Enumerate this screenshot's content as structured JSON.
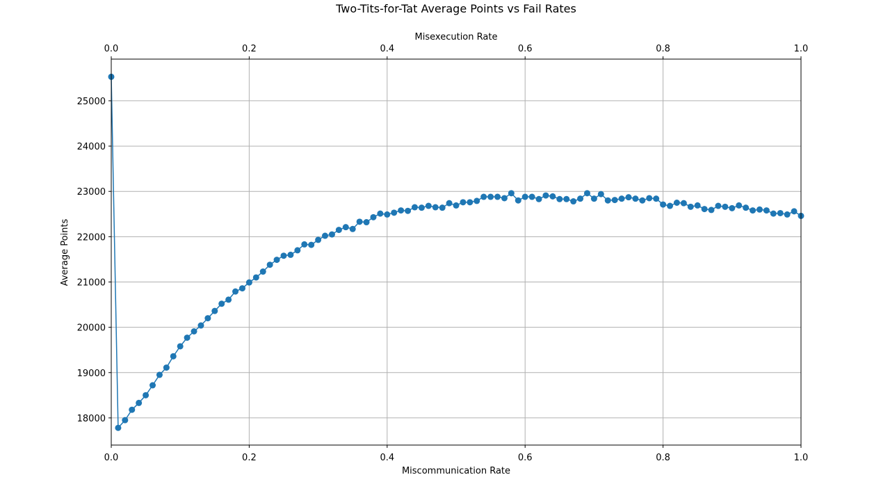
{
  "chart_data": {
    "type": "line",
    "title": "Two-Tits-for-Tat Average Points vs Fail Rates",
    "xlabel": "Miscommunication Rate",
    "x2label": "Misexecution Rate",
    "ylabel": "Average Points",
    "xlim": [
      0,
      1
    ],
    "ylim": [
      17400,
      25920
    ],
    "grid": true,
    "xticks": [
      0.0,
      0.2,
      0.4,
      0.6,
      0.8,
      1.0
    ],
    "xtick_labels": [
      "0.0",
      "0.2",
      "0.4",
      "0.6",
      "0.8",
      "1.0"
    ],
    "x2ticks": [
      0.0,
      0.2,
      0.4,
      0.6,
      0.8,
      1.0
    ],
    "x2tick_labels": [
      "0.0",
      "0.2",
      "0.4",
      "0.6",
      "0.8",
      "1.0"
    ],
    "yticks": [
      18000,
      19000,
      20000,
      21000,
      22000,
      23000,
      24000,
      25000
    ],
    "ytick_labels": [
      "18000",
      "19000",
      "20000",
      "21000",
      "22000",
      "23000",
      "24000",
      "25000"
    ],
    "series": [
      {
        "color": "#1f77b4",
        "marker": "circle",
        "x": [
          0.0,
          0.01,
          0.02,
          0.03,
          0.04,
          0.05,
          0.06,
          0.07,
          0.08,
          0.09,
          0.1,
          0.11,
          0.12,
          0.13,
          0.14,
          0.15,
          0.16,
          0.17,
          0.18,
          0.19,
          0.2,
          0.21,
          0.22,
          0.23,
          0.24,
          0.25,
          0.26,
          0.27,
          0.28,
          0.29,
          0.3,
          0.31,
          0.32,
          0.33,
          0.34,
          0.35,
          0.36,
          0.37,
          0.38,
          0.39,
          0.4,
          0.41,
          0.42,
          0.43,
          0.44,
          0.45,
          0.46,
          0.47,
          0.48,
          0.49,
          0.5,
          0.51,
          0.52,
          0.53,
          0.54,
          0.55,
          0.56,
          0.57,
          0.58,
          0.59,
          0.6,
          0.61,
          0.62,
          0.63,
          0.64,
          0.65,
          0.66,
          0.67,
          0.68,
          0.69,
          0.7,
          0.71,
          0.72,
          0.73,
          0.74,
          0.75,
          0.76,
          0.77,
          0.78,
          0.79,
          0.8,
          0.81,
          0.82,
          0.83,
          0.84,
          0.85,
          0.86,
          0.87,
          0.88,
          0.89,
          0.9,
          0.91,
          0.92,
          0.93,
          0.94,
          0.95,
          0.96,
          0.97,
          0.98,
          0.99,
          1.0
        ],
        "y": [
          25530,
          17780,
          17950,
          18180,
          18330,
          18500,
          18720,
          18950,
          19110,
          19360,
          19580,
          19770,
          19910,
          20040,
          20200,
          20360,
          20520,
          20610,
          20790,
          20860,
          20990,
          21100,
          21230,
          21380,
          21490,
          21580,
          21600,
          21700,
          21830,
          21820,
          21930,
          22020,
          22050,
          22150,
          22210,
          22170,
          22330,
          22320,
          22430,
          22510,
          22490,
          22530,
          22580,
          22570,
          22650,
          22640,
          22680,
          22650,
          22640,
          22740,
          22690,
          22760,
          22760,
          22790,
          22880,
          22880,
          22880,
          22850,
          22960,
          22800,
          22880,
          22880,
          22830,
          22910,
          22890,
          22830,
          22830,
          22780,
          22840,
          22960,
          22840,
          22940,
          22800,
          22810,
          22840,
          22870,
          22840,
          22800,
          22850,
          22840,
          22710,
          22680,
          22750,
          22740,
          22660,
          22690,
          22610,
          22590,
          22680,
          22660,
          22630,
          22690,
          22640,
          22580,
          22600,
          22580,
          22510,
          22520,
          22490,
          22560,
          22460
        ]
      }
    ]
  }
}
